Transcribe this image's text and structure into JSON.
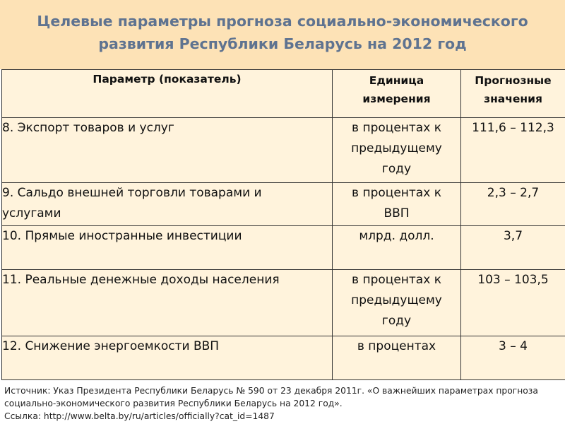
{
  "header": {
    "title_line1": "Целевые параметры прогноза социально-экономического",
    "title_line2": "развития Республики Беларусь на 2012 год"
  },
  "table": {
    "columns": [
      "Параметр (показатель)",
      "Единица измерения",
      "Прогнозные значения"
    ],
    "rows": [
      {
        "param": "8. Экспорт товаров и услуг",
        "unit": "в процентах к предыдущему году",
        "value": "111,6 – 112,3"
      },
      {
        "param": "9. Сальдо внешней торговли товарами и услугами",
        "unit": "в процентах к ВВП",
        "value": "2,3 – 2,7"
      },
      {
        "param": "10. Прямые иностранные инвестиции",
        "unit": "млрд. долл.",
        "value": "3,7"
      },
      {
        "param": "11. Реальные денежные доходы населения",
        "unit": "в процентах к предыдущему году",
        "value": "103 – 103,5"
      },
      {
        "param": "12. Снижение энергоемкости ВВП",
        "unit": "в процентах",
        "value": "3 – 4"
      }
    ]
  },
  "footer": {
    "source_line1": "Источник: Указ Президента Республики Беларусь № 590 от 23 декабря 2011г.  «О важнейших параметрах прогноза",
    "source_line2": "социально-экономического развития Республики Беларусь на 2012 год».",
    "link_text": "Ссылка: http://www.belta.by/ru/articles/officially?cat_id=1487"
  },
  "colors": {
    "header_bg": "#fde2b6",
    "title_text": "#5f7390",
    "table_bg": "#fff3dc"
  }
}
